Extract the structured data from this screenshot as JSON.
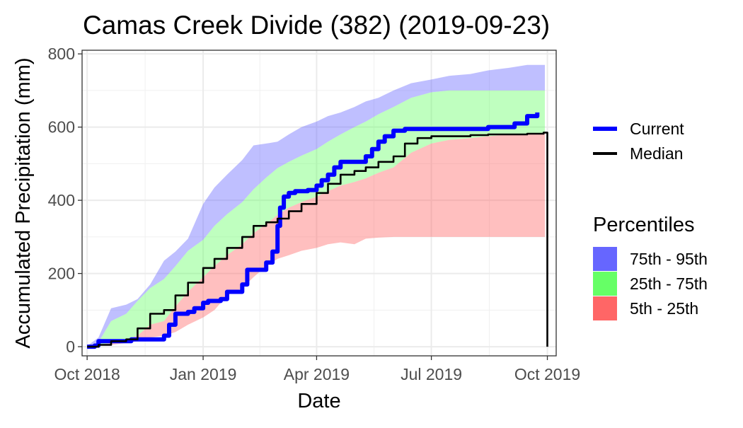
{
  "chart_data": {
    "type": "area",
    "title": "Camas Creek Divide (382) (2019-09-23)",
    "xlabel": "Date",
    "ylabel": "Accumulated Precipitation (mm)",
    "xlim": [
      "2018-10-01",
      "2019-10-01"
    ],
    "ylim": [
      -25,
      810
    ],
    "grid": true,
    "x_ticks": [
      {
        "date": "2018-10-01",
        "label": "Oct 2018"
      },
      {
        "date": "2019-01-01",
        "label": "Jan 2019"
      },
      {
        "date": "2019-04-01",
        "label": "Apr 2019"
      },
      {
        "date": "2019-07-01",
        "label": "Jul 2019"
      },
      {
        "date": "2019-10-01",
        "label": "Oct 2019"
      }
    ],
    "y_ticks": [
      {
        "value": 0,
        "label": "0"
      },
      {
        "value": 200,
        "label": "200"
      },
      {
        "value": 400,
        "label": "400"
      },
      {
        "value": 600,
        "label": "600"
      },
      {
        "value": 800,
        "label": "800"
      }
    ],
    "x": [
      "2018-10-01",
      "2018-10-10",
      "2018-10-20",
      "2018-11-01",
      "2018-11-10",
      "2018-11-20",
      "2018-12-01",
      "2018-12-10",
      "2018-12-20",
      "2019-01-01",
      "2019-01-10",
      "2019-01-20",
      "2019-02-01",
      "2019-02-10",
      "2019-02-20",
      "2019-03-01",
      "2019-03-10",
      "2019-03-20",
      "2019-04-01",
      "2019-04-10",
      "2019-04-20",
      "2019-05-01",
      "2019-05-10",
      "2019-05-20",
      "2019-06-01",
      "2019-06-15",
      "2019-07-01",
      "2019-07-15",
      "2019-08-01",
      "2019-08-15",
      "2019-09-01",
      "2019-09-15",
      "2019-09-29"
    ],
    "bands": [
      {
        "name": "75th - 95th",
        "color": "#6666ff",
        "lower": [
          0,
          12,
          70,
          90,
          125,
          160,
          185,
          220,
          262,
          292,
          330,
          362,
          395,
          430,
          462,
          488,
          505,
          522,
          540,
          560,
          580,
          600,
          615,
          635,
          655,
          680,
          695,
          700,
          700,
          700,
          700,
          700,
          700
        ],
        "upper": [
          2,
          25,
          105,
          115,
          130,
          170,
          235,
          260,
          295,
          390,
          435,
          470,
          510,
          550,
          555,
          560,
          580,
          600,
          615,
          630,
          640,
          655,
          670,
          680,
          700,
          720,
          730,
          740,
          745,
          755,
          762,
          770,
          770
        ]
      },
      {
        "name": "25th - 75th",
        "color": "#66ff66",
        "lower": [
          0,
          5,
          10,
          20,
          30,
          60,
          70,
          110,
          150,
          190,
          220,
          250,
          280,
          310,
          335,
          360,
          380,
          395,
          410,
          425,
          440,
          450,
          460,
          475,
          490,
          530,
          555,
          565,
          570,
          575,
          580,
          580,
          585
        ],
        "upper": [
          0,
          12,
          70,
          90,
          125,
          160,
          185,
          220,
          262,
          292,
          330,
          362,
          395,
          430,
          462,
          488,
          505,
          522,
          540,
          560,
          580,
          600,
          615,
          635,
          655,
          680,
          695,
          700,
          700,
          700,
          700,
          700,
          700
        ]
      },
      {
        "name": "5th - 25th",
        "color": "#ff6666",
        "lower": [
          0,
          2,
          5,
          10,
          15,
          25,
          30,
          40,
          60,
          80,
          100,
          140,
          160,
          190,
          220,
          240,
          250,
          262,
          270,
          280,
          285,
          280,
          295,
          298,
          300,
          300,
          300,
          300,
          300,
          300,
          300,
          300,
          300
        ],
        "upper": [
          0,
          5,
          10,
          20,
          30,
          60,
          70,
          110,
          150,
          190,
          220,
          250,
          280,
          310,
          335,
          360,
          380,
          395,
          410,
          425,
          440,
          450,
          460,
          475,
          490,
          530,
          555,
          565,
          570,
          575,
          580,
          580,
          585
        ]
      }
    ],
    "series": [
      {
        "name": "Current",
        "color": "#0000ff",
        "x": [
          "2018-10-01",
          "2018-10-05",
          "2018-10-07",
          "2018-10-10",
          "2018-10-15",
          "2018-10-20",
          "2018-11-01",
          "2018-11-05",
          "2018-11-10",
          "2018-11-20",
          "2018-11-28",
          "2018-12-01",
          "2018-12-05",
          "2018-12-10",
          "2018-12-15",
          "2018-12-20",
          "2018-12-25",
          "2019-01-01",
          "2019-01-05",
          "2019-01-10",
          "2019-01-15",
          "2019-01-20",
          "2019-01-25",
          "2019-02-01",
          "2019-02-05",
          "2019-02-10",
          "2019-02-15",
          "2019-02-20",
          "2019-02-25",
          "2019-03-01",
          "2019-03-03",
          "2019-03-06",
          "2019-03-10",
          "2019-03-15",
          "2019-03-20",
          "2019-03-25",
          "2019-04-01",
          "2019-04-05",
          "2019-04-10",
          "2019-04-15",
          "2019-04-20",
          "2019-04-30",
          "2019-05-05",
          "2019-05-10",
          "2019-05-15",
          "2019-05-20",
          "2019-05-25",
          "2019-06-01",
          "2019-06-10",
          "2019-06-20",
          "2019-07-01",
          "2019-07-15",
          "2019-08-01",
          "2019-08-15",
          "2019-09-01",
          "2019-09-05",
          "2019-09-15",
          "2019-09-23"
        ],
        "values": [
          0,
          0,
          3,
          15,
          15,
          15,
          15,
          20,
          20,
          20,
          20,
          30,
          60,
          90,
          90,
          95,
          105,
          120,
          125,
          125,
          130,
          150,
          150,
          170,
          210,
          210,
          210,
          230,
          260,
          330,
          380,
          410,
          420,
          425,
          425,
          428,
          440,
          455,
          470,
          490,
          505,
          505,
          505,
          520,
          540,
          560,
          575,
          590,
          595,
          595,
          595,
          595,
          595,
          600,
          600,
          610,
          630,
          640
        ]
      },
      {
        "name": "Median",
        "color": "#000000",
        "x": [
          "2018-10-01",
          "2018-10-10",
          "2018-10-20",
          "2018-11-01",
          "2018-11-10",
          "2018-11-20",
          "2018-12-01",
          "2018-12-10",
          "2018-12-20",
          "2019-01-01",
          "2019-01-10",
          "2019-01-20",
          "2019-02-01",
          "2019-02-10",
          "2019-02-20",
          "2019-03-01",
          "2019-03-10",
          "2019-03-20",
          "2019-04-01",
          "2019-04-10",
          "2019-04-20",
          "2019-05-01",
          "2019-05-10",
          "2019-05-20",
          "2019-06-01",
          "2019-06-10",
          "2019-06-20",
          "2019-07-01",
          "2019-07-15",
          "2019-08-01",
          "2019-08-15",
          "2019-09-01",
          "2019-09-15",
          "2019-09-28",
          "2019-09-29",
          "2019-10-01"
        ],
        "values": [
          0,
          5,
          15,
          20,
          50,
          90,
          100,
          140,
          175,
          215,
          240,
          270,
          300,
          330,
          340,
          350,
          370,
          390,
          420,
          445,
          470,
          480,
          490,
          505,
          520,
          555,
          570,
          575,
          575,
          578,
          580,
          580,
          582,
          585,
          585,
          0
        ]
      }
    ],
    "legend": {
      "placement": "right",
      "lines_title": "",
      "lines": [
        {
          "label": "Current",
          "color": "#0000ff"
        },
        {
          "label": "Median",
          "color": "#000000"
        }
      ],
      "fill_title": "Percentiles",
      "fills": [
        {
          "label": "75th - 95th",
          "color": "#6666ff"
        },
        {
          "label": "25th - 75th",
          "color": "#66ff66"
        },
        {
          "label": "5th - 25th",
          "color": "#ff6666"
        }
      ]
    }
  }
}
